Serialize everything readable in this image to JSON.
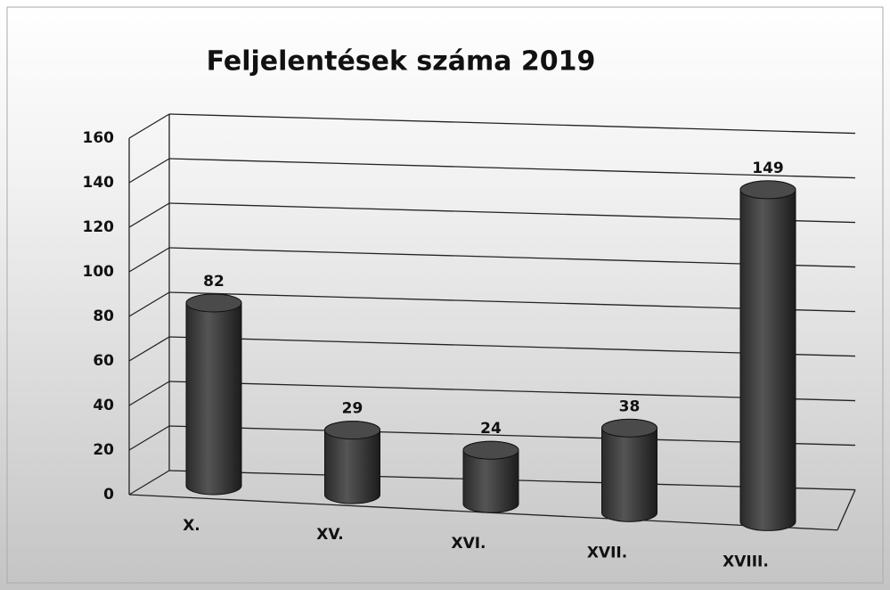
{
  "chart_data": {
    "type": "bar",
    "title": "Feljelentések száma 2019",
    "categories": [
      "X.",
      "XV.",
      "XVI.",
      "XVII.",
      "XVIII."
    ],
    "values": [
      82,
      29,
      24,
      38,
      149
    ],
    "color": "#3a3a3a",
    "ylim": [
      0,
      160
    ],
    "yticks": [
      0,
      20,
      40,
      60,
      80,
      100,
      120,
      140,
      160
    ],
    "grid": true
  }
}
